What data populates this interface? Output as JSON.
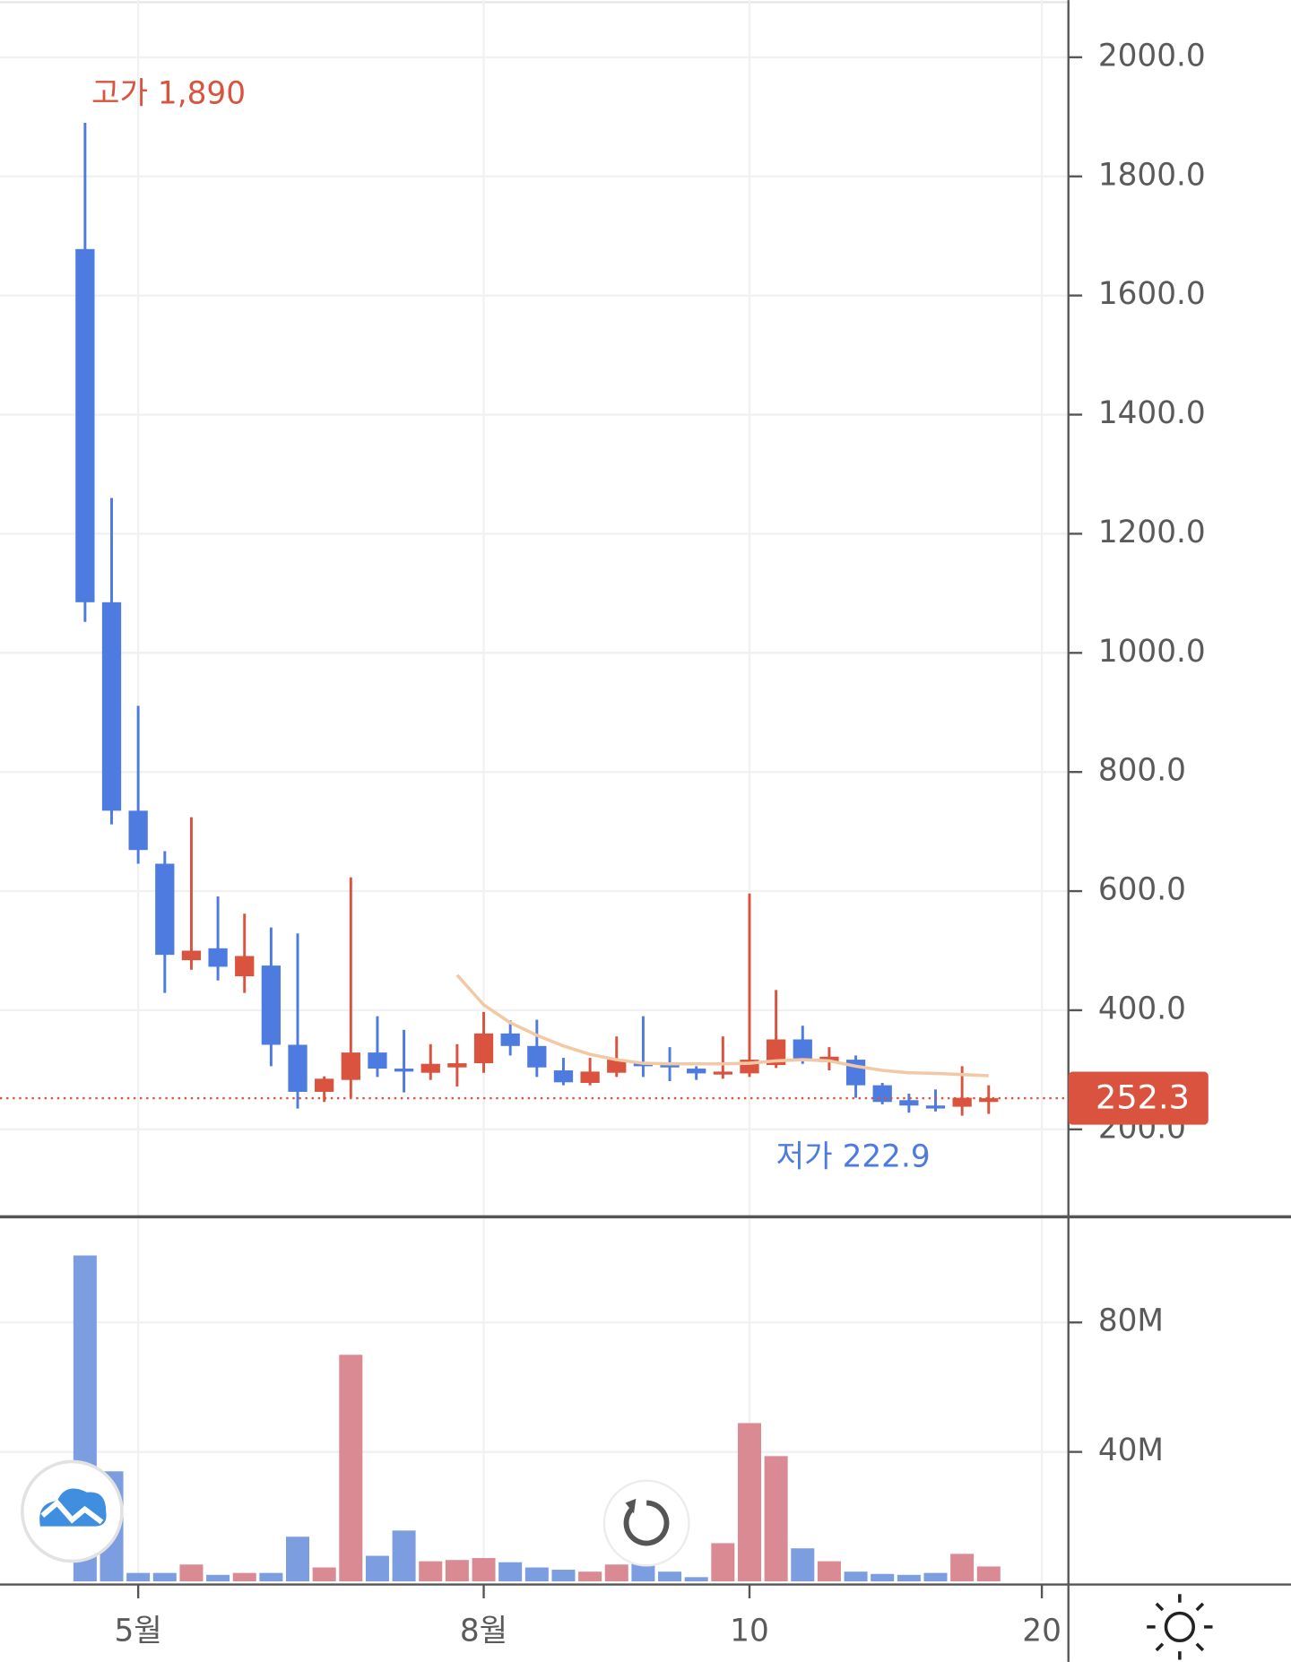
{
  "chart_data": [
    {
      "type": "candlestick",
      "open": [
        1678,
        1085,
        735,
        646,
        484,
        504,
        457,
        475,
        342,
        263,
        283,
        329,
        302,
        295,
        304,
        311,
        361,
        340,
        299,
        278,
        295,
        313,
        310,
        302,
        292,
        294,
        308,
        351,
        313,
        317,
        274,
        249,
        240,
        238,
        246
      ],
      "high": [
        1890,
        1260,
        911,
        667,
        724,
        591,
        562,
        539,
        529,
        289,
        623,
        390,
        367,
        343,
        343,
        397,
        383,
        384,
        320,
        320,
        356,
        390,
        338,
        306,
        356,
        596,
        434,
        374,
        338,
        324,
        278,
        260,
        267,
        306,
        274
      ],
      "low": [
        1052,
        712,
        646,
        429,
        468,
        450,
        429,
        306,
        235,
        246,
        253,
        288,
        262,
        283,
        272,
        295,
        324,
        288,
        274,
        274,
        288,
        288,
        281,
        283,
        285,
        288,
        303,
        310,
        299,
        253,
        242,
        228,
        230,
        222.9,
        226
      ],
      "close": [
        1085,
        735,
        669,
        493,
        500,
        473,
        491,
        342,
        263,
        285,
        329,
        302,
        297,
        310,
        311,
        361,
        340,
        304,
        279,
        297,
        317,
        306,
        304,
        294,
        297,
        317,
        351,
        315,
        322,
        274,
        246,
        240,
        235,
        253,
        252.3
      ],
      "up_color": "#d9533f",
      "down_color": "#4e7be0",
      "series": [
        {
          "color": "#f2c9a4",
          "values": [
            null,
            null,
            null,
            null,
            null,
            null,
            null,
            null,
            null,
            null,
            null,
            null,
            null,
            null,
            459,
            409,
            379,
            358,
            340,
            326,
            317,
            311,
            310,
            310,
            310,
            311,
            315,
            317,
            315,
            306,
            299,
            295,
            294,
            292,
            290
          ]
        }
      ],
      "annotations": [
        {
          "text": "고가 1,890"
        },
        {
          "text": "저가 222.9"
        }
      ],
      "xlim": [
        -3.2,
        37
      ],
      "xticks": [
        {
          "value": 2,
          "label": "5월"
        },
        {
          "value": 15,
          "label": "8월"
        },
        {
          "value": 25,
          "label": "10"
        },
        {
          "value": 36,
          "label": "20"
        }
      ],
      "ylim": [
        55,
        2096
      ],
      "yticks": [
        {
          "value": 200,
          "label": "200.0"
        },
        {
          "value": 400,
          "label": "400.0"
        },
        {
          "value": 600,
          "label": "600.0"
        },
        {
          "value": 800,
          "label": "800.0"
        },
        {
          "value": 1000,
          "label": "1000.0"
        },
        {
          "value": 1200,
          "label": "1200.0"
        },
        {
          "value": 1400,
          "label": "1400.0"
        },
        {
          "value": 1600,
          "label": "1600.0"
        },
        {
          "value": 1800,
          "label": "1800.0"
        },
        {
          "value": 2000,
          "label": "2000.0"
        }
      ],
      "grid": true
    },
    {
      "type": "volume",
      "values": [
        100700000,
        34000000,
        2600000,
        2600000,
        5200000,
        2000000,
        2600000,
        2600000,
        13800000,
        4300000,
        70000000,
        7900000,
        15700000,
        6200000,
        6600000,
        7200000,
        5900000,
        4300000,
        3600000,
        3000000,
        5200000,
        15400000,
        3000000,
        1300000,
        11800000,
        48900000,
        38700000,
        10200000,
        6200000,
        3000000,
        2300000,
        2000000,
        2600000,
        8500000,
        4600000
      ],
      "up_color": "#d98a92",
      "down_color": "#7c9de0",
      "ylim": [
        0,
        112000000
      ],
      "yticks": [
        {
          "value": 40000000,
          "label": "40M"
        },
        {
          "value": 80000000,
          "label": "80M"
        }
      ],
      "grid": true
    }
  ]
}
